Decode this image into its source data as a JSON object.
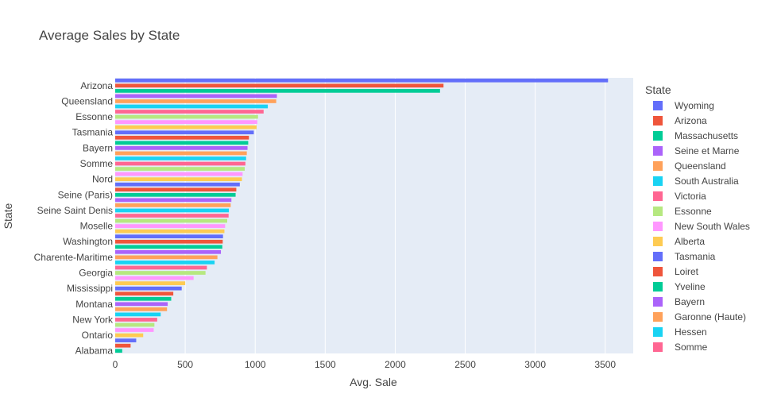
{
  "chart_data": {
    "type": "bar",
    "orientation": "horizontal",
    "title": "Average Sales by State",
    "xlabel": "Avg. Sale",
    "ylabel": "State",
    "xlim": [
      0,
      3700
    ],
    "xticks": [
      0,
      500,
      1000,
      1500,
      2000,
      2500,
      3000,
      3500
    ],
    "xtick_labels": [
      "0",
      "500",
      "1000",
      "1500",
      "2000",
      "2500",
      "3000",
      "3500"
    ],
    "grid": true,
    "legend_title": "State",
    "legend_position": "right",
    "palette": [
      "#636efa",
      "#EF553B",
      "#00cc96",
      "#ab63fa",
      "#FFA15A",
      "#19d3f3",
      "#FF6692",
      "#B6E880",
      "#FF97FF",
      "#FECB52"
    ],
    "bars": [
      {
        "state": "Wyoming",
        "value": 3520,
        "label": ""
      },
      {
        "state": "Arizona",
        "value": 2345,
        "label": "Arizona"
      },
      {
        "state": "Massachusetts",
        "value": 2320,
        "label": ""
      },
      {
        "state": "Seine et Marne",
        "value": 1155,
        "label": ""
      },
      {
        "state": "Queensland",
        "value": 1150,
        "label": "Queensland"
      },
      {
        "state": "South Australia",
        "value": 1090,
        "label": ""
      },
      {
        "state": "Victoria",
        "value": 1060,
        "label": ""
      },
      {
        "state": "Essonne",
        "value": 1020,
        "label": "Essonne"
      },
      {
        "state": "New South Wales",
        "value": 1015,
        "label": ""
      },
      {
        "state": "Alberta",
        "value": 1010,
        "label": ""
      },
      {
        "state": "Tasmania",
        "value": 990,
        "label": "Tasmania"
      },
      {
        "state": "Loiret",
        "value": 955,
        "label": ""
      },
      {
        "state": "Yveline",
        "value": 950,
        "label": ""
      },
      {
        "state": "Bayern",
        "value": 945,
        "label": "Bayern"
      },
      {
        "state": "Garonne (Haute)",
        "value": 940,
        "label": ""
      },
      {
        "state": "Hessen",
        "value": 935,
        "label": ""
      },
      {
        "state": "Somme",
        "value": 930,
        "label": "Somme"
      },
      {
        "state": "",
        "value": 925,
        "label": ""
      },
      {
        "state": "",
        "value": 910,
        "label": ""
      },
      {
        "state": "",
        "value": 905,
        "label": "Nord"
      },
      {
        "state": "",
        "value": 890,
        "label": ""
      },
      {
        "state": "",
        "value": 865,
        "label": ""
      },
      {
        "state": "",
        "value": 860,
        "label": "Seine (Paris)"
      },
      {
        "state": "",
        "value": 830,
        "label": ""
      },
      {
        "state": "",
        "value": 825,
        "label": ""
      },
      {
        "state": "",
        "value": 812,
        "label": "Seine Saint Denis"
      },
      {
        "state": "",
        "value": 810,
        "label": ""
      },
      {
        "state": "",
        "value": 800,
        "label": ""
      },
      {
        "state": "",
        "value": 785,
        "label": "Moselle"
      },
      {
        "state": "",
        "value": 780,
        "label": ""
      },
      {
        "state": "",
        "value": 770,
        "label": ""
      },
      {
        "state": "",
        "value": 768,
        "label": "Washington"
      },
      {
        "state": "",
        "value": 765,
        "label": ""
      },
      {
        "state": "",
        "value": 755,
        "label": ""
      },
      {
        "state": "",
        "value": 730,
        "label": "Charente-Maritime"
      },
      {
        "state": "",
        "value": 710,
        "label": ""
      },
      {
        "state": "",
        "value": 655,
        "label": ""
      },
      {
        "state": "",
        "value": 645,
        "label": "Georgia"
      },
      {
        "state": "",
        "value": 560,
        "label": ""
      },
      {
        "state": "",
        "value": 500,
        "label": ""
      },
      {
        "state": "",
        "value": 475,
        "label": "Mississippi"
      },
      {
        "state": "",
        "value": 415,
        "label": ""
      },
      {
        "state": "",
        "value": 400,
        "label": ""
      },
      {
        "state": "",
        "value": 375,
        "label": "Montana"
      },
      {
        "state": "",
        "value": 370,
        "label": ""
      },
      {
        "state": "",
        "value": 325,
        "label": ""
      },
      {
        "state": "",
        "value": 300,
        "label": "New York"
      },
      {
        "state": "",
        "value": 280,
        "label": ""
      },
      {
        "state": "",
        "value": 275,
        "label": ""
      },
      {
        "state": "",
        "value": 200,
        "label": "Ontario"
      },
      {
        "state": "",
        "value": 150,
        "label": ""
      },
      {
        "state": "",
        "value": 110,
        "label": ""
      },
      {
        "state": "",
        "value": 50,
        "label": "Alabama"
      }
    ],
    "legend_entries": [
      "Wyoming",
      "Arizona",
      "Massachusetts",
      "Seine et Marne",
      "Queensland",
      "South Australia",
      "Victoria",
      "Essonne",
      "New South Wales",
      "Alberta",
      "Tasmania",
      "Loiret",
      "Yveline",
      "Bayern",
      "Garonne (Haute)",
      "Hessen",
      "Somme"
    ]
  }
}
